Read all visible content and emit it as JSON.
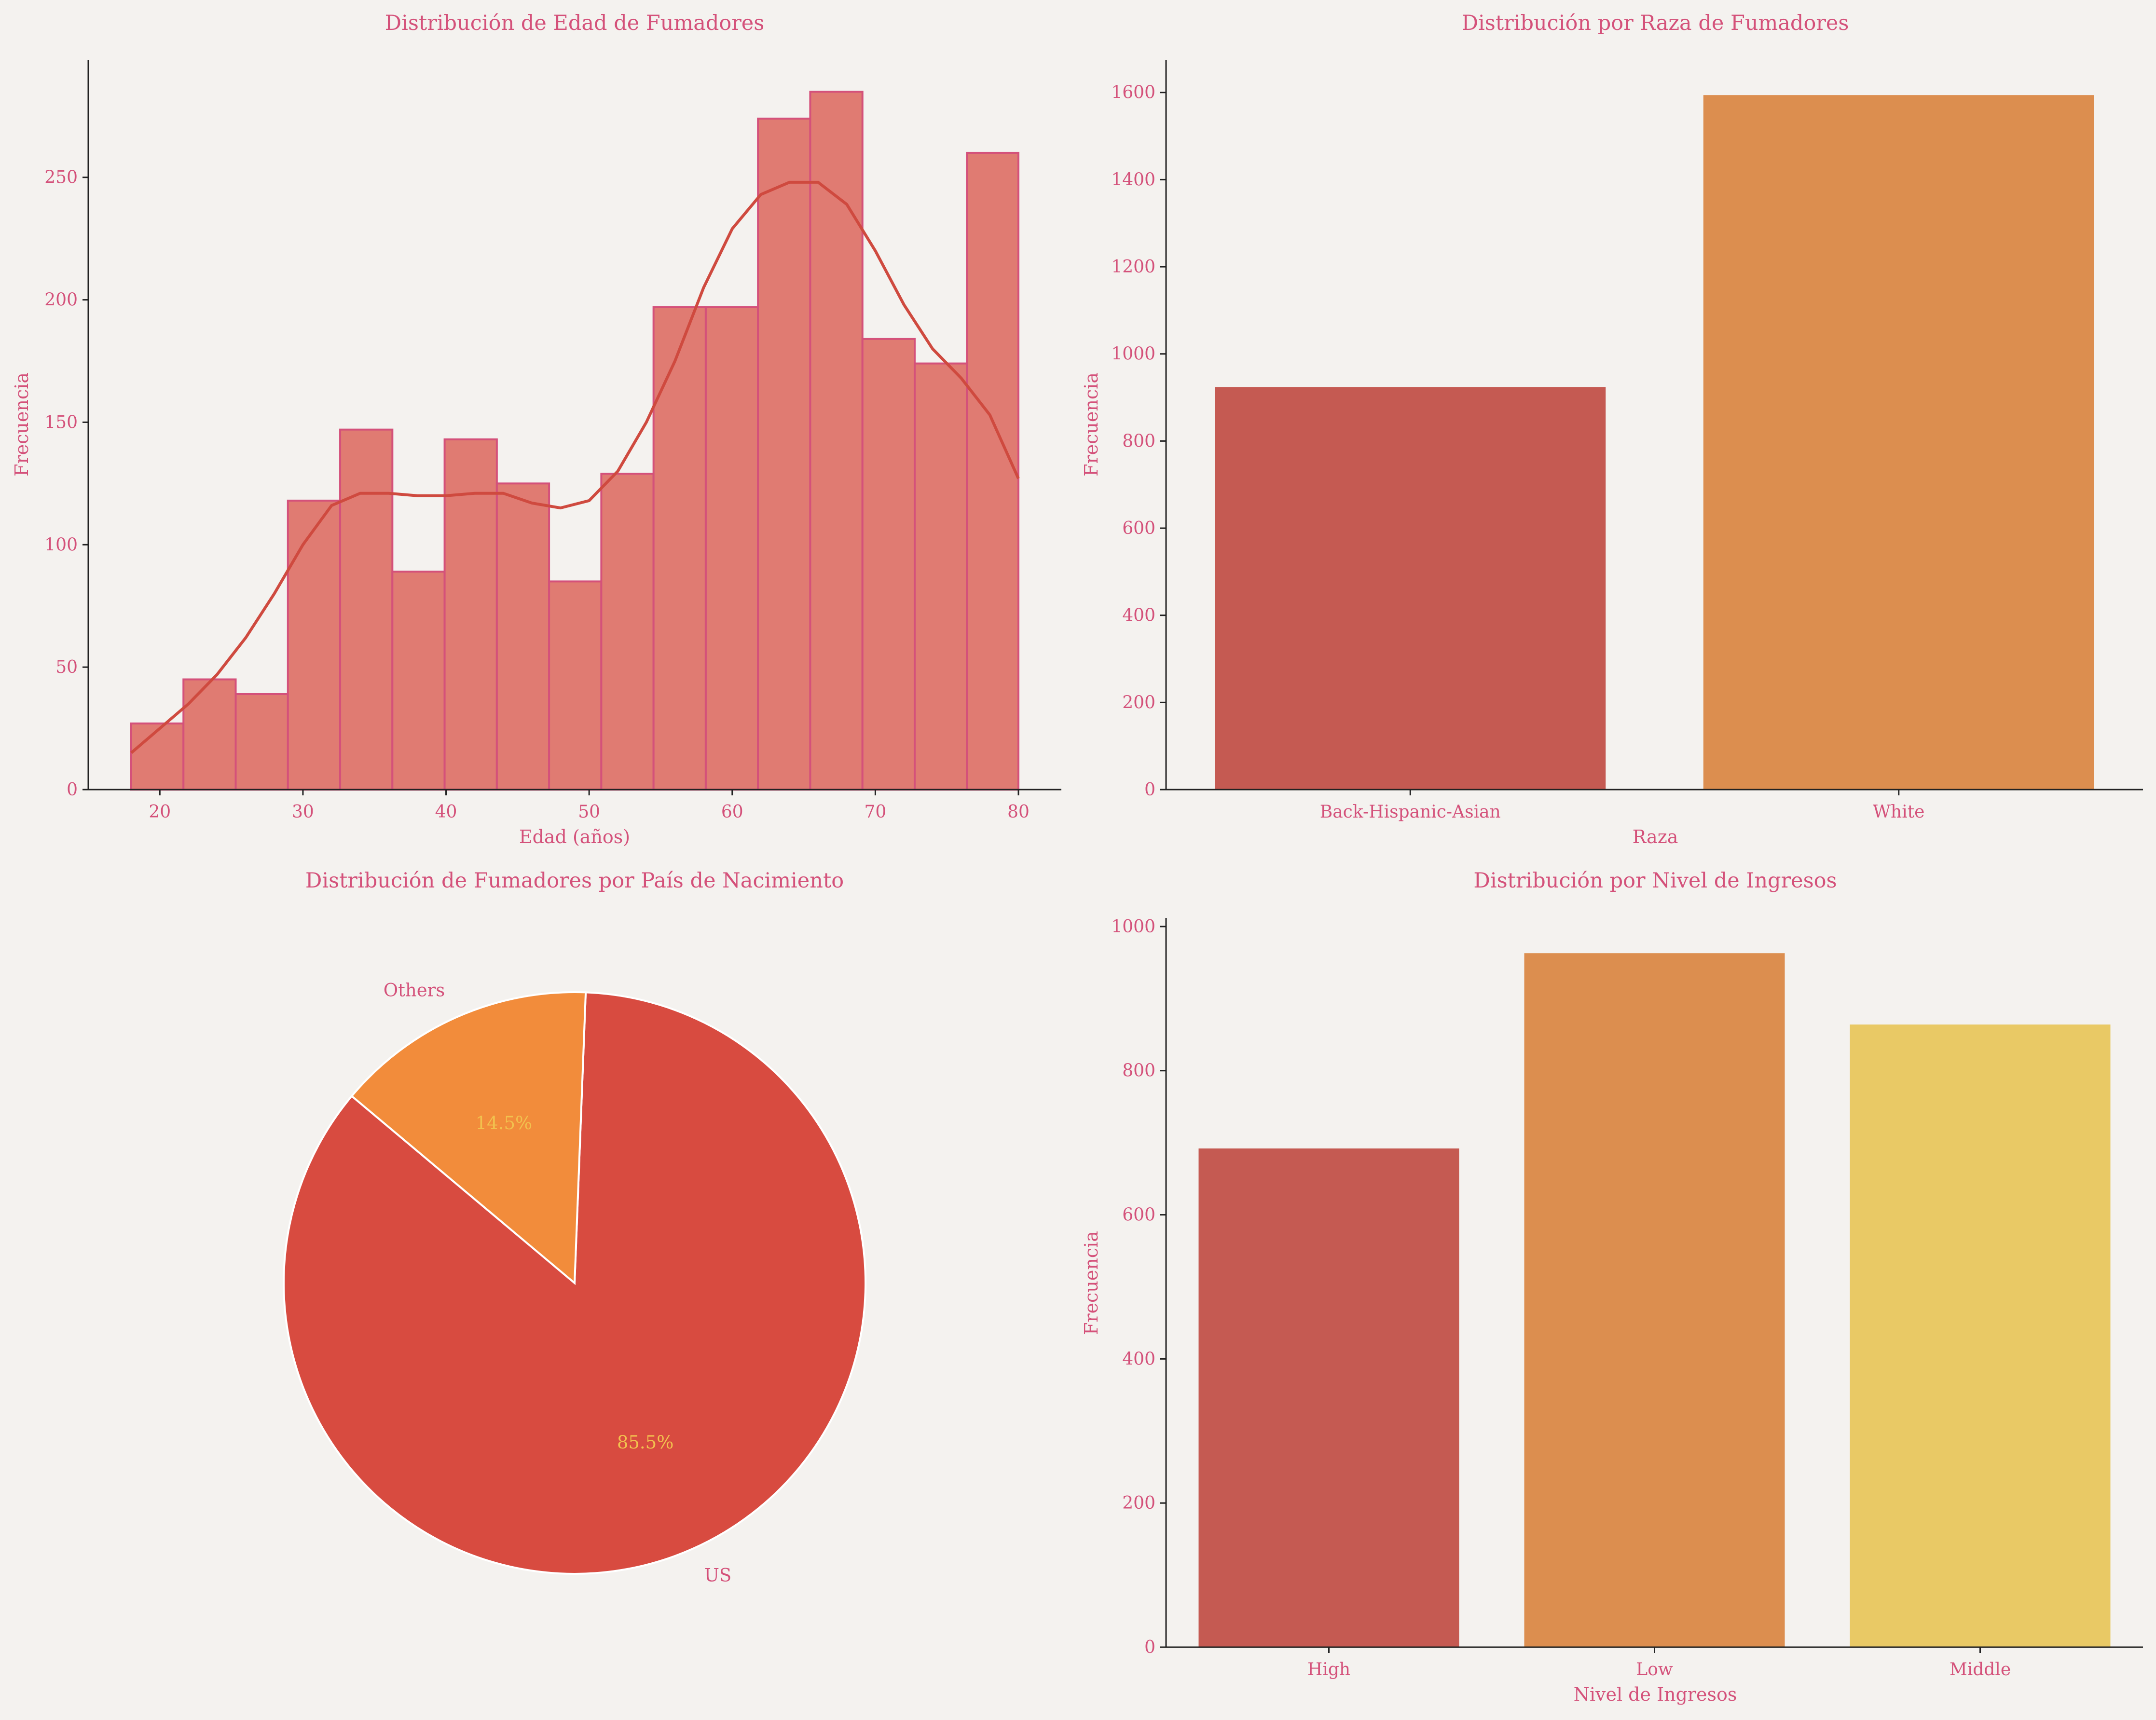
{
  "colors": {
    "background": "#f4f2ef",
    "text": "#d4517a",
    "hist_fill": "#e07b72",
    "hist_edge": "#d4517a",
    "kde": "#cf4a3f",
    "axis": "#222222",
    "pie_wedge_edge": "#ffffff"
  },
  "chart_data": [
    {
      "type": "bar",
      "subtype": "histogram",
      "title": "Distribución de Edad de Fumadores",
      "xlabel": "Edad (años)",
      "ylabel": "Frecuencia",
      "xlim": [
        15,
        83
      ],
      "ylim": [
        0,
        298
      ],
      "xticks": [
        20,
        30,
        40,
        50,
        60,
        70,
        80
      ],
      "yticks": [
        0,
        50,
        100,
        150,
        200,
        250
      ],
      "bin_edges": [
        18,
        21.65,
        25.3,
        28.95,
        32.6,
        36.25,
        39.9,
        43.55,
        47.2,
        50.85,
        54.5,
        58.15,
        61.8,
        65.45,
        69.1,
        72.75,
        76.4,
        80
      ],
      "values": [
        27,
        45,
        39,
        118,
        147,
        89,
        143,
        125,
        85,
        129,
        197,
        197,
        274,
        285,
        184,
        174,
        260
      ],
      "kde": {
        "x": [
          18,
          20,
          22,
          24,
          26,
          28,
          30,
          32,
          34,
          36,
          38,
          40,
          42,
          44,
          46,
          48,
          50,
          52,
          54,
          56,
          58,
          60,
          62,
          64,
          66,
          68,
          70,
          72,
          74,
          76,
          78,
          80
        ],
        "y": [
          15,
          25,
          35,
          47,
          62,
          80,
          100,
          116,
          121,
          121,
          120,
          120,
          121,
          121,
          117,
          115,
          118,
          130,
          150,
          175,
          205,
          229,
          243,
          248,
          248,
          239,
          220,
          198,
          180,
          168,
          153,
          127
        ]
      },
      "grid": false,
      "legend": "none"
    },
    {
      "type": "bar",
      "title": "Distribución por Raza de Fumadores",
      "xlabel": "Raza",
      "ylabel": "Frecuencia",
      "ylim": [
        0,
        1675
      ],
      "yticks": [
        0,
        200,
        400,
        600,
        800,
        1000,
        1200,
        1400,
        1600
      ],
      "categories": [
        "Back-Hispanic-Asian",
        "White"
      ],
      "values": [
        924,
        1594
      ],
      "colors": [
        "#c55a52",
        "#dc8e4f"
      ],
      "grid": false,
      "legend": "none"
    },
    {
      "type": "pie",
      "title": "Distribución de Fumadores por País de Nacimiento",
      "labels": [
        "US",
        "Others"
      ],
      "values": [
        85.5,
        14.5
      ],
      "pct_labels": [
        "85.5%",
        "14.5%"
      ],
      "colors": [
        "#d84b40",
        "#f28c3b"
      ],
      "start_angle_deg": 140,
      "legend": "none"
    },
    {
      "type": "bar",
      "title": "Distribución por Nivel de Ingresos",
      "xlabel": "Nivel de Ingresos",
      "ylabel": "Frecuencia",
      "ylim": [
        0,
        1012
      ],
      "yticks": [
        0,
        200,
        400,
        600,
        800,
        1000
      ],
      "categories": [
        "High",
        "Low",
        "Middle"
      ],
      "values": [
        692,
        963,
        864
      ],
      "colors": [
        "#c55a52",
        "#dc8e4f",
        "#e9c965"
      ],
      "grid": false,
      "legend": "none"
    }
  ]
}
